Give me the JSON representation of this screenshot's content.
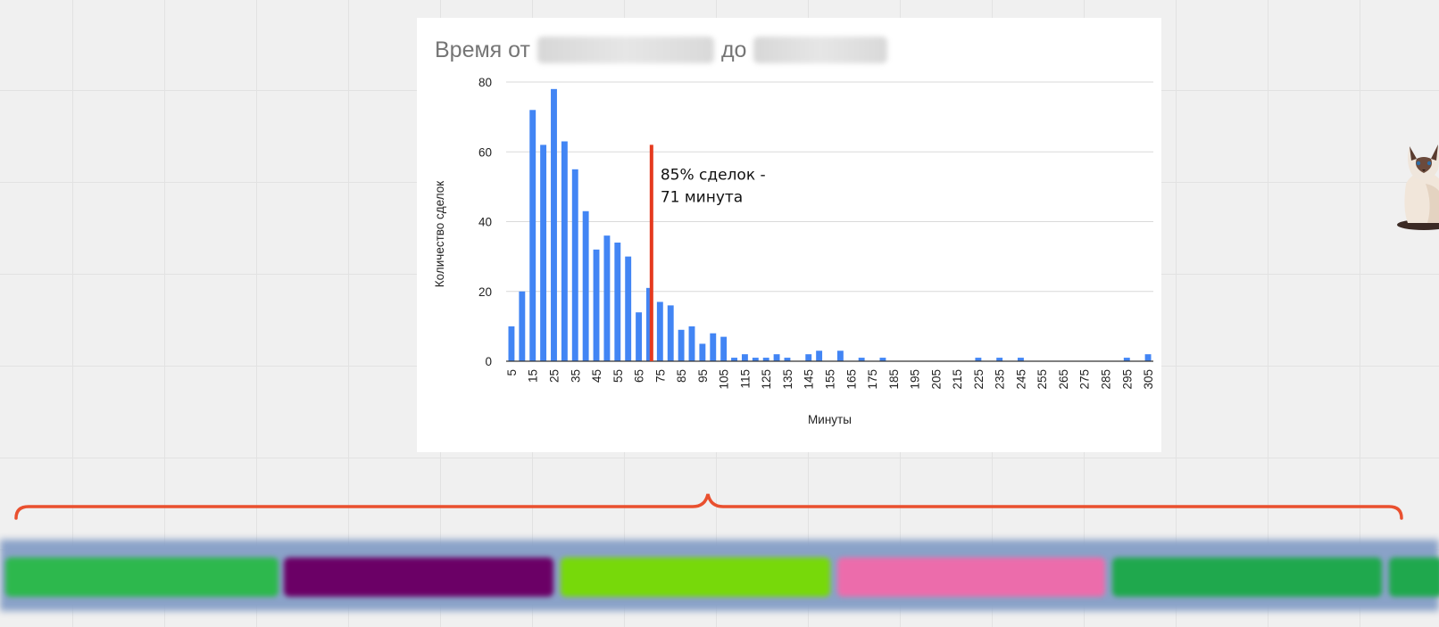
{
  "chart_data": {
    "type": "bar",
    "title_parts": [
      "Время от",
      "до"
    ],
    "xlabel": "Минуты",
    "ylabel": "Количество сделок",
    "ylim": [
      0,
      80
    ],
    "yticks": [
      "0",
      "20",
      "40",
      "60",
      "80"
    ],
    "grid": true,
    "bar_color": "#4285f4",
    "x": [
      5,
      10,
      15,
      20,
      25,
      30,
      35,
      40,
      45,
      50,
      55,
      60,
      65,
      70,
      75,
      80,
      85,
      90,
      95,
      100,
      105,
      110,
      115,
      120,
      125,
      130,
      135,
      140,
      145,
      150,
      155,
      160,
      165,
      170,
      175,
      180,
      185,
      190,
      195,
      200,
      205,
      210,
      215,
      220,
      225,
      230,
      235,
      240,
      245,
      250,
      255,
      260,
      265,
      270,
      275,
      280,
      285,
      290,
      295,
      300,
      305
    ],
    "values": [
      10,
      20,
      72,
      62,
      78,
      63,
      55,
      43,
      32,
      36,
      34,
      30,
      14,
      21,
      17,
      16,
      9,
      10,
      5,
      8,
      7,
      1,
      2,
      1,
      1,
      2,
      1,
      0,
      2,
      3,
      0,
      3,
      0,
      1,
      0,
      1,
      0,
      0,
      0,
      0,
      0,
      0,
      0,
      0,
      1,
      0,
      1,
      0,
      1,
      0,
      0,
      0,
      0,
      0,
      0,
      0,
      0,
      0,
      1,
      0,
      2
    ],
    "xtick_labels": [
      "5",
      "15",
      "25",
      "35",
      "45",
      "55",
      "65",
      "75",
      "85",
      "95",
      "105",
      "115",
      "125",
      "135",
      "145",
      "155",
      "165",
      "175",
      "185",
      "195",
      "205",
      "215",
      "225",
      "235",
      "245",
      "255",
      "265",
      "275",
      "285",
      "295",
      "305"
    ],
    "annotation": {
      "x": 71,
      "line_color": "#e53a1e",
      "lines": [
        "85% сделок -",
        "71 минута"
      ]
    }
  },
  "brace_color": "#e9502f",
  "stage_colors": [
    "#2db84d",
    "#6b0066",
    "#77d90a",
    "#ec6cab",
    "#1fa84d",
    "#1fa84d"
  ]
}
